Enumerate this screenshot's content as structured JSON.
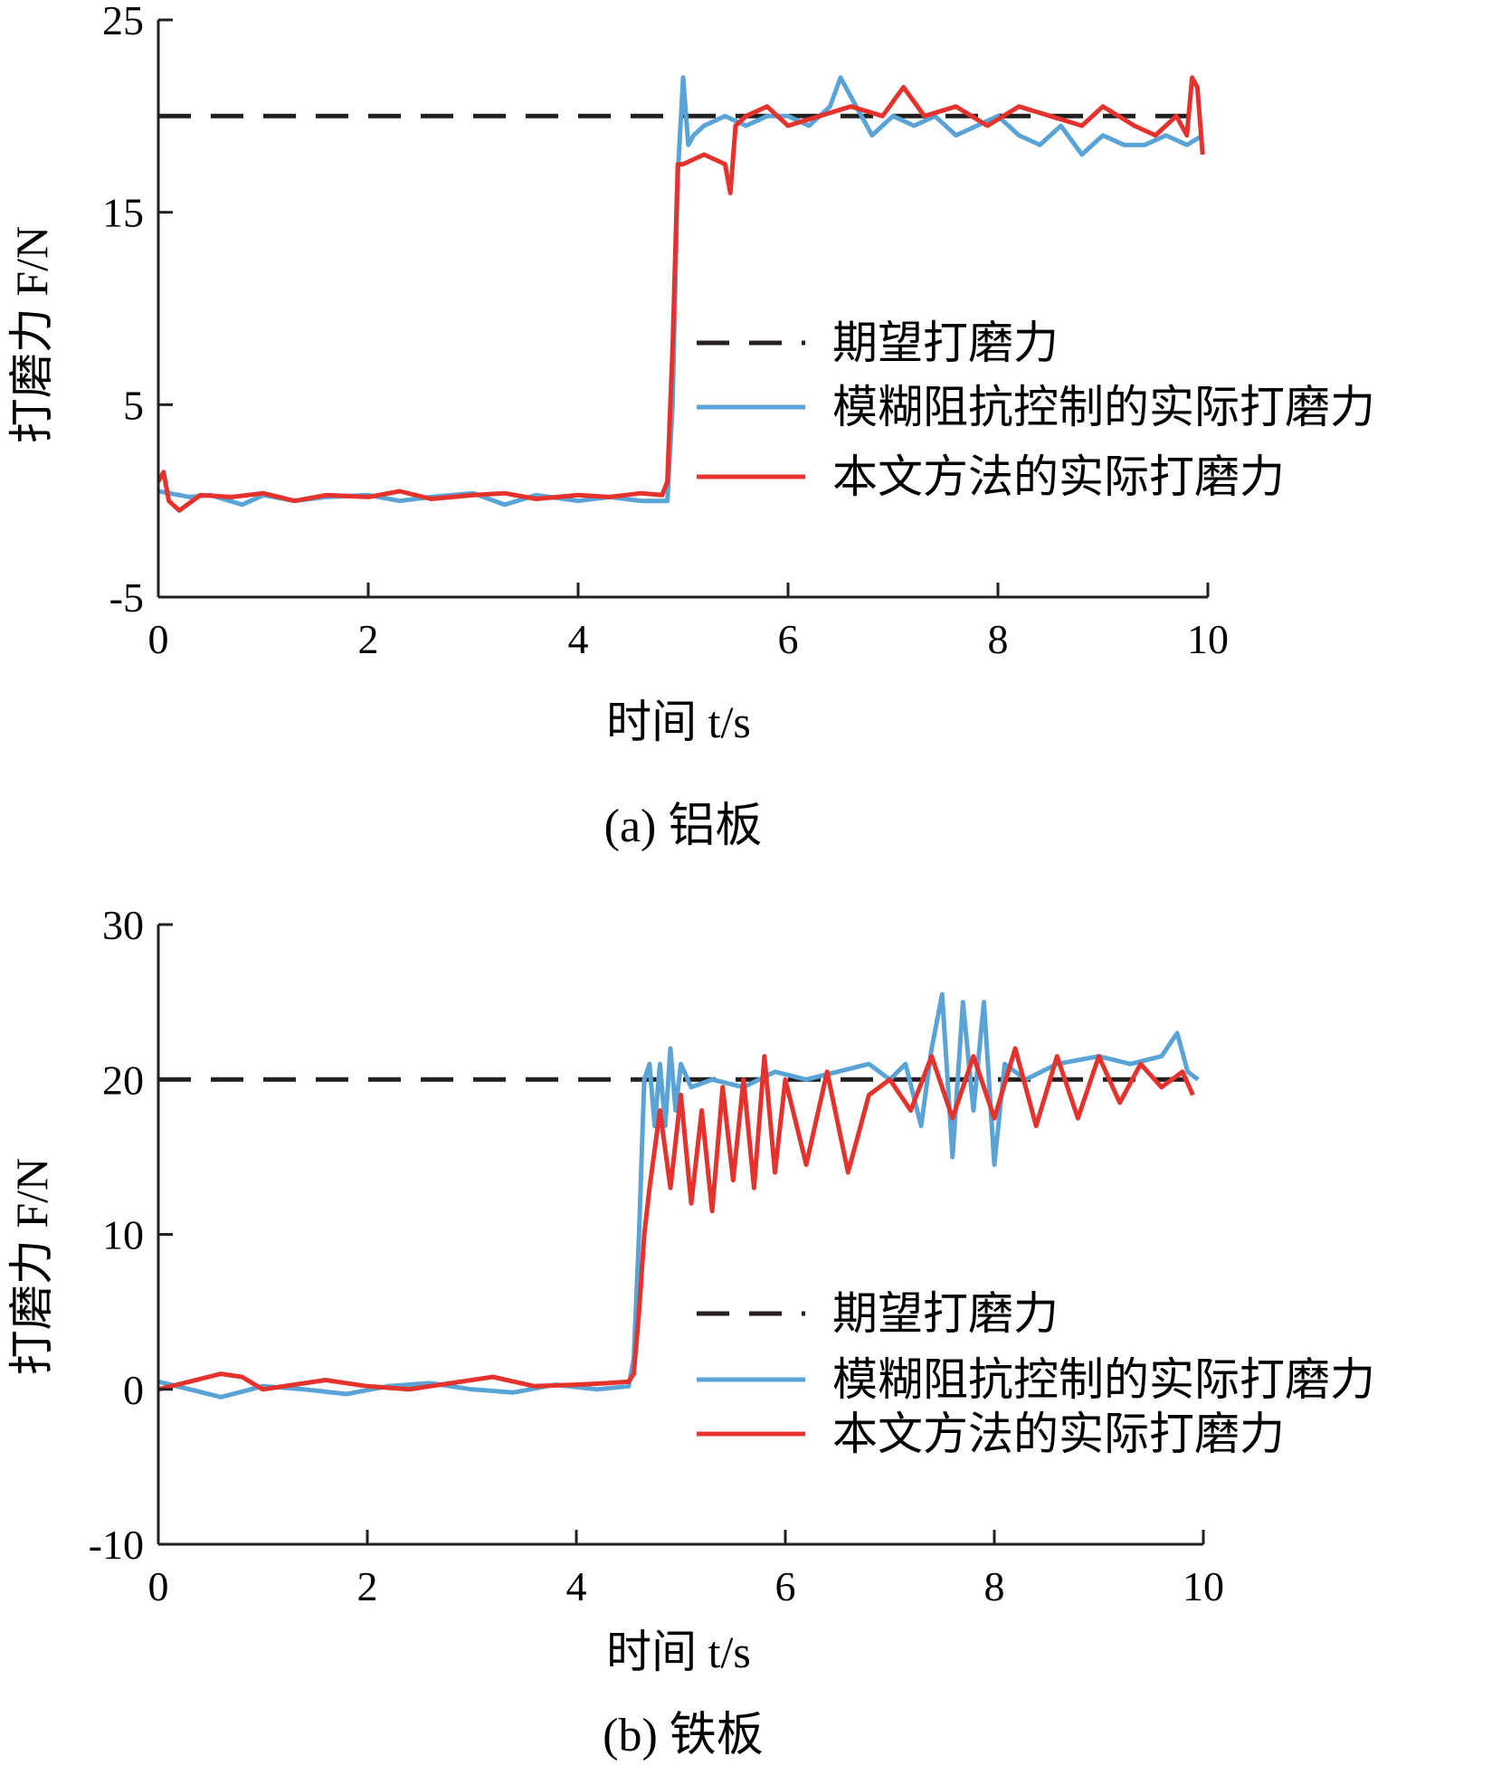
{
  "colors": {
    "desired": "#231f20",
    "fuzzy": "#5aa3d6",
    "proposed": "#e5322d",
    "axis": "#231f20"
  },
  "chart_data": [
    {
      "type": "line",
      "caption": "(a) 铝板",
      "xlabel": "时间 t/s",
      "ylabel": "打磨力 F/N",
      "xlim": [
        0,
        10
      ],
      "ylim": [
        -5,
        25
      ],
      "x_ticks": [
        0,
        2,
        4,
        6,
        8,
        10
      ],
      "y_ticks": [
        -5,
        5,
        15,
        25
      ],
      "legend": "right-middle",
      "series": [
        {
          "name": "期望打磨力",
          "style": "dashed",
          "x": [
            0,
            10
          ],
          "y": [
            20,
            20
          ]
        },
        {
          "name": "模糊阻抗控制的实际打磨力",
          "style": "solid",
          "x": [
            0,
            0.3,
            0.5,
            0.8,
            1.0,
            1.3,
            1.6,
            2.0,
            2.3,
            2.6,
            3.0,
            3.3,
            3.6,
            4.0,
            4.3,
            4.6,
            4.85,
            4.9,
            4.95,
            5.0,
            5.05,
            5.1,
            5.2,
            5.4,
            5.6,
            5.8,
            6.0,
            6.2,
            6.4,
            6.5,
            6.6,
            6.8,
            7.0,
            7.2,
            7.4,
            7.6,
            7.8,
            8.0,
            8.2,
            8.4,
            8.6,
            8.8,
            9.0,
            9.2,
            9.4,
            9.6,
            9.8,
            9.95
          ],
          "y": [
            0.5,
            0.2,
            0.3,
            -0.2,
            0.3,
            0,
            0.2,
            0.3,
            0,
            0.2,
            0.4,
            -0.2,
            0.3,
            0,
            0.2,
            0,
            0,
            5,
            17,
            22,
            18.5,
            19,
            19.5,
            20,
            19.5,
            20,
            20,
            19.5,
            20.5,
            22,
            21,
            19,
            20,
            19.5,
            20,
            19,
            19.5,
            20,
            19,
            18.5,
            19.5,
            18,
            19,
            18.5,
            18.5,
            19,
            18.5,
            19
          ]
        },
        {
          "name": "本文方法的实际打磨力",
          "style": "solid",
          "x": [
            0,
            0.05,
            0.1,
            0.2,
            0.4,
            0.7,
            1.0,
            1.3,
            1.6,
            2.0,
            2.3,
            2.6,
            3.0,
            3.3,
            3.6,
            4.0,
            4.3,
            4.6,
            4.8,
            4.85,
            4.9,
            4.95,
            5.0,
            5.2,
            5.4,
            5.45,
            5.5,
            5.6,
            5.8,
            6.0,
            6.3,
            6.6,
            6.9,
            7.1,
            7.3,
            7.6,
            7.9,
            8.2,
            8.5,
            8.8,
            9.0,
            9.3,
            9.5,
            9.7,
            9.8,
            9.85,
            9.9,
            9.95
          ],
          "y": [
            1,
            1.5,
            0,
            -0.5,
            0.3,
            0.2,
            0.4,
            0,
            0.3,
            0.2,
            0.5,
            0.1,
            0.3,
            0.4,
            0.1,
            0.3,
            0.2,
            0.4,
            0.3,
            1,
            8,
            17.5,
            17.5,
            18,
            17.5,
            16,
            19.5,
            20,
            20.5,
            19.5,
            20,
            20.5,
            20,
            21.5,
            20,
            20.5,
            19.5,
            20.5,
            20,
            19.5,
            20.5,
            19.5,
            19,
            20,
            19,
            22,
            21.5,
            18
          ]
        }
      ]
    },
    {
      "type": "line",
      "caption": "(b) 铁板",
      "xlabel": "时间 t/s",
      "ylabel": "打磨力 F/N",
      "xlim": [
        0,
        10
      ],
      "ylim": [
        -10,
        30
      ],
      "x_ticks": [
        0,
        2,
        4,
        6,
        8,
        10
      ],
      "y_ticks": [
        -10,
        0,
        10,
        20,
        30
      ],
      "legend": "right-middle",
      "series": [
        {
          "name": "期望打磨力",
          "style": "dashed",
          "x": [
            0,
            10
          ],
          "y": [
            20,
            20
          ]
        },
        {
          "name": "模糊阻抗控制的实际打磨力",
          "style": "solid",
          "x": [
            0,
            0.3,
            0.6,
            1.0,
            1.4,
            1.8,
            2.2,
            2.6,
            3.0,
            3.4,
            3.8,
            4.2,
            4.5,
            4.55,
            4.6,
            4.65,
            4.7,
            4.75,
            4.8,
            4.85,
            4.9,
            4.95,
            5.0,
            5.1,
            5.3,
            5.6,
            5.9,
            6.2,
            6.5,
            6.8,
            7.0,
            7.15,
            7.3,
            7.4,
            7.5,
            7.6,
            7.7,
            7.8,
            7.9,
            8.0,
            8.1,
            8.3,
            8.6,
            9.0,
            9.3,
            9.6,
            9.75,
            9.85,
            9.95
          ],
          "y": [
            0.5,
            0,
            -0.5,
            0.2,
            0,
            -0.3,
            0.2,
            0.4,
            0,
            -0.2,
            0.3,
            0,
            0.2,
            2,
            10,
            20,
            21,
            17,
            21,
            17,
            22,
            18,
            21,
            19.5,
            20,
            19.5,
            20.5,
            20,
            20.5,
            21,
            20,
            21,
            17,
            22,
            25.5,
            15,
            25,
            18,
            25,
            14.5,
            21,
            20,
            21,
            21.5,
            21,
            21.5,
            23,
            20.5,
            20
          ]
        },
        {
          "name": "本文方法的实际打磨力",
          "style": "solid",
          "x": [
            0,
            0.3,
            0.6,
            0.8,
            1.0,
            1.3,
            1.6,
            2.0,
            2.4,
            2.8,
            3.2,
            3.6,
            4.0,
            4.3,
            4.5,
            4.55,
            4.6,
            4.65,
            4.7,
            4.8,
            4.9,
            5.0,
            5.1,
            5.2,
            5.3,
            5.4,
            5.5,
            5.6,
            5.7,
            5.8,
            5.9,
            6.0,
            6.2,
            6.4,
            6.6,
            6.8,
            7.0,
            7.2,
            7.4,
            7.6,
            7.8,
            8.0,
            8.2,
            8.4,
            8.6,
            8.8,
            9.0,
            9.2,
            9.4,
            9.6,
            9.8,
            9.9
          ],
          "y": [
            0,
            0.5,
            1,
            0.8,
            0,
            0.3,
            0.6,
            0.2,
            0,
            0.4,
            0.8,
            0.2,
            0.3,
            0.4,
            0.5,
            1,
            5,
            10,
            13,
            18,
            13,
            19,
            12,
            18,
            11.5,
            19.5,
            13.5,
            20,
            13,
            21.5,
            14,
            20,
            14.5,
            20.5,
            14,
            19,
            20,
            18,
            21.5,
            17.5,
            21.5,
            17.5,
            22,
            17,
            21.5,
            17.5,
            21.5,
            18.5,
            21,
            19.5,
            20.5,
            19
          ]
        }
      ]
    }
  ]
}
